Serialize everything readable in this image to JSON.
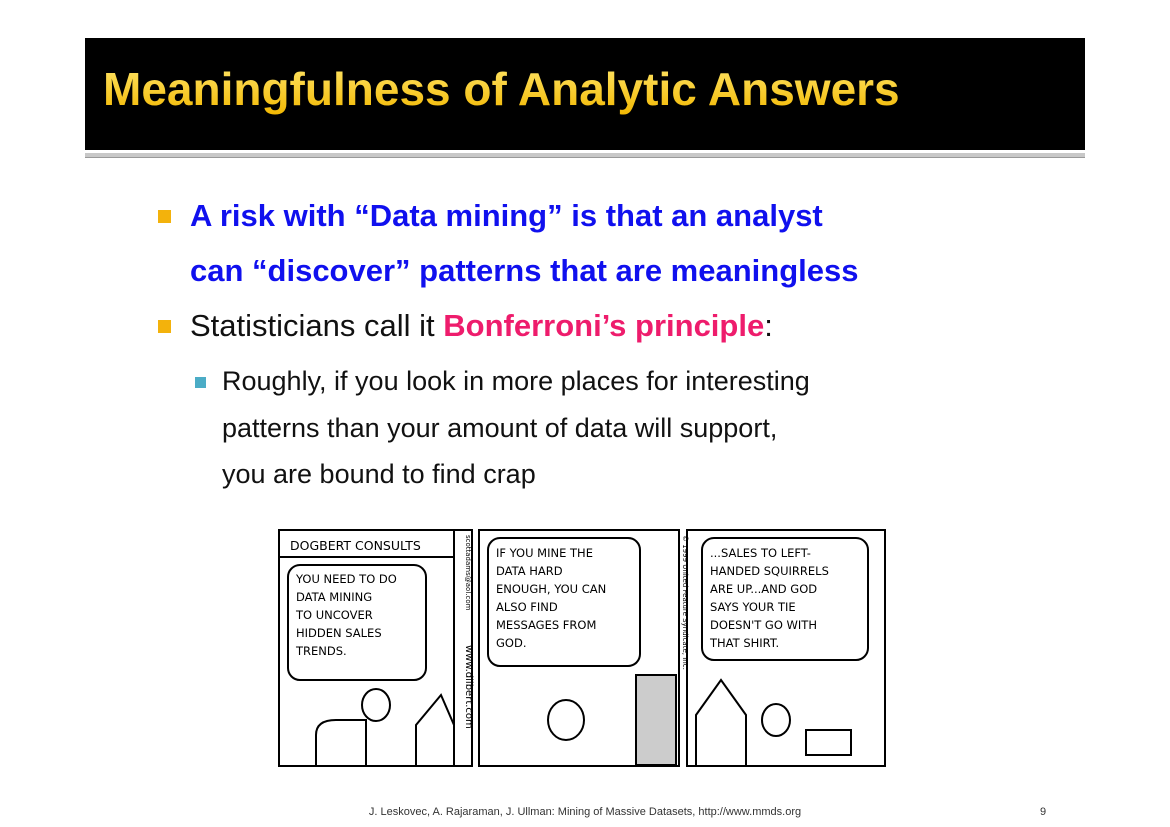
{
  "header": {
    "title": "Meaningfulness of Analytic Answers"
  },
  "bullets": [
    {
      "lines": [
        "A risk with “Data mining” is that an analyst",
        "can “discover” patterns that are meaningless"
      ]
    },
    {
      "text": "Statisticians call it ",
      "highlight": "Bonferroni’s principle",
      "end": ":"
    }
  ],
  "sub_bullet": {
    "lines": [
      "Roughly, if you look in more places for interesting",
      "patterns than your amount of data will support,",
      "you are bound to find crap"
    ]
  },
  "comic": {
    "panels": [
      {
        "header": "DOGBERT CONSULTS",
        "lines": [
          "YOU NEED TO DO",
          "DATA MINING",
          "TO UNCOVER",
          "HIDDEN SALES",
          "TRENDS."
        ]
      },
      {
        "lines": [
          "IF YOU MINE THE",
          "DATA HARD",
          "ENOUGH, YOU CAN",
          "ALSO FIND",
          "MESSAGES FROM",
          "GOD."
        ]
      },
      {
        "lines": [
          "...SALES TO LEFT-",
          "HANDED SQUIRRELS",
          "ARE UP...AND GOD",
          "SAYS YOUR TIE",
          "DOESN'T GO WITH",
          "THAT SHIRT."
        ]
      }
    ],
    "credits": [
      "scottadams@aol.com",
      "www.dilbert.com",
      "© 1999 United Feature Syndicate, Inc."
    ]
  },
  "footer": {
    "citation": "J. Leskovec, A. Rajaraman, J. Ullman: Mining of Massive Datasets, http://www.mmds.org",
    "page": "9"
  }
}
